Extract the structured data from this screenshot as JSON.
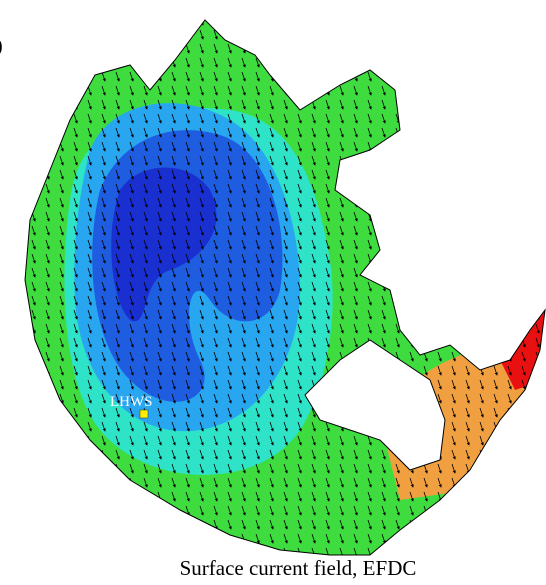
{
  "panel_label": ")",
  "station": {
    "label": "LHWS"
  },
  "caption": "Surface current field, EFDC"
}
